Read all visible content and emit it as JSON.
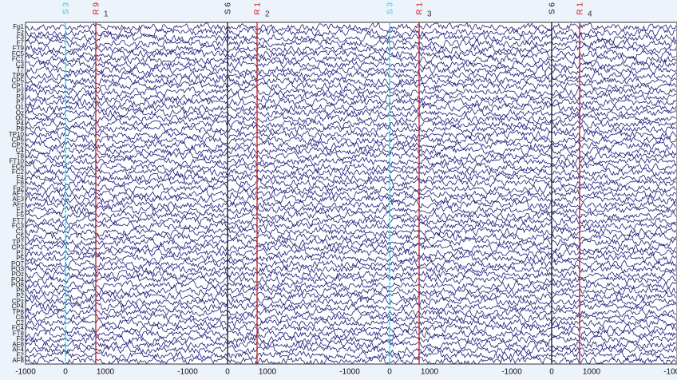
{
  "channels": [
    "Fp1",
    "Fz",
    "F3",
    "F7",
    "FT9",
    "FC5",
    "FC1",
    "C3",
    "T7",
    "TP9",
    "CP5",
    "CP1",
    "Pz",
    "P3",
    "P7",
    "O1",
    "Oz",
    "O2",
    "P4",
    "P8",
    "TP10",
    "CP6",
    "CP2",
    "C4",
    "T8",
    "FT10",
    "FC6",
    "FC2",
    "F4",
    "F8",
    "Fp2",
    "AF7",
    "AF3",
    "AFz",
    "F1",
    "F5",
    "FT7",
    "FC3",
    "C1",
    "C5",
    "TP7",
    "CP3",
    "P1",
    "P5",
    "PO7",
    "PO3",
    "POz",
    "PO4",
    "PO8",
    "P6",
    "P2",
    "CPz",
    "CP4",
    "TP8",
    "C6",
    "C2",
    "FC4",
    "FT8",
    "F6",
    "AF8",
    "AF4",
    "F2",
    "AF8"
  ],
  "epochs": [
    {
      "number": "1",
      "ticks": [
        -1000,
        0,
        1000
      ],
      "markers": [
        {
          "label": "S 3",
          "latency": 0,
          "color": "#17d3e3"
        },
        {
          "label": "R 9",
          "latency": 760,
          "color": "#d01818"
        }
      ]
    },
    {
      "number": "2",
      "ticks": [
        -1000,
        0,
        1000
      ],
      "markers": [
        {
          "label": "S 6",
          "latency": 0,
          "color": "#111111"
        },
        {
          "label": "R 1",
          "latency": 740,
          "color": "#d01818"
        }
      ]
    },
    {
      "number": "3",
      "ticks": [
        -1000,
        0,
        1000
      ],
      "markers": [
        {
          "label": "S 3",
          "latency": 0,
          "color": "#17d3e3"
        },
        {
          "label": "R 1",
          "latency": 740,
          "color": "#d01818"
        }
      ]
    },
    {
      "number": "4",
      "ticks": [
        -1000,
        0,
        1000
      ],
      "markers": [
        {
          "label": "S 6",
          "latency": 0,
          "color": "#111111"
        },
        {
          "label": "R 1",
          "latency": 700,
          "color": "#d01818"
        }
      ]
    }
  ],
  "trailing_tick": -1000,
  "trace_color": "#1c1c7a"
}
